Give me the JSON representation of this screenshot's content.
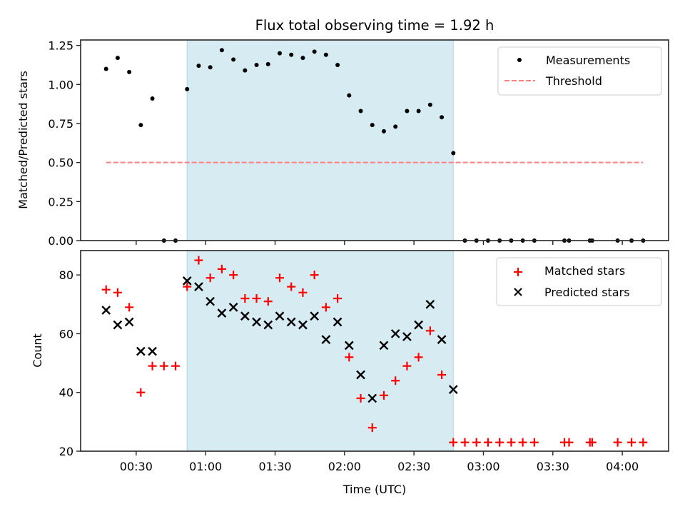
{
  "figure_title": "Flux total observing time = 1.92 h",
  "chart_data": [
    {
      "type": "scatter",
      "panel": "top",
      "title": "Flux total observing time = 1.92 h",
      "xlabel": "",
      "ylabel": "Matched/Predicted stars",
      "ylim": [
        0,
        1.285
      ],
      "xlim": [
        "00:06",
        "04:20"
      ],
      "yticks": [
        "0.00",
        "0.25",
        "0.50",
        "0.75",
        "1.00",
        "1.25"
      ],
      "ytick_values": [
        0,
        0.25,
        0.5,
        0.75,
        1.0,
        1.25
      ],
      "xticks": [
        "00:30",
        "01:00",
        "01:30",
        "02:00",
        "02:30",
        "03:00",
        "03:30",
        "04:00"
      ],
      "xtick_labels_visible": false,
      "legend": {
        "position": "top-right",
        "entries": [
          "Measurements",
          "Threshold"
        ]
      },
      "shaded_region": {
        "start": "00:52",
        "end": "02:47",
        "color": "#add8e6"
      },
      "series": [
        {
          "name": "Measurements",
          "marker": "dot",
          "color": "#000000",
          "points": [
            {
              "t": "00:17",
              "y": 1.1
            },
            {
              "t": "00:22",
              "y": 1.17
            },
            {
              "t": "00:27",
              "y": 1.08
            },
            {
              "t": "00:32",
              "y": 0.74
            },
            {
              "t": "00:37",
              "y": 0.91
            },
            {
              "t": "00:42",
              "y": 0.0
            },
            {
              "t": "00:47",
              "y": 0.0
            },
            {
              "t": "00:52",
              "y": 0.97
            },
            {
              "t": "00:57",
              "y": 1.12
            },
            {
              "t": "01:02",
              "y": 1.11
            },
            {
              "t": "01:07",
              "y": 1.22
            },
            {
              "t": "01:12",
              "y": 1.16
            },
            {
              "t": "01:17",
              "y": 1.09
            },
            {
              "t": "01:22",
              "y": 1.125
            },
            {
              "t": "01:27",
              "y": 1.13
            },
            {
              "t": "01:32",
              "y": 1.2
            },
            {
              "t": "01:37",
              "y": 1.19
            },
            {
              "t": "01:42",
              "y": 1.17
            },
            {
              "t": "01:47",
              "y": 1.21
            },
            {
              "t": "01:52",
              "y": 1.19
            },
            {
              "t": "01:57",
              "y": 1.125
            },
            {
              "t": "02:02",
              "y": 0.93
            },
            {
              "t": "02:07",
              "y": 0.83
            },
            {
              "t": "02:12",
              "y": 0.74
            },
            {
              "t": "02:17",
              "y": 0.7
            },
            {
              "t": "02:22",
              "y": 0.73
            },
            {
              "t": "02:27",
              "y": 0.83
            },
            {
              "t": "02:32",
              "y": 0.83
            },
            {
              "t": "02:37",
              "y": 0.87
            },
            {
              "t": "02:42",
              "y": 0.79
            },
            {
              "t": "02:47",
              "y": 0.56
            },
            {
              "t": "02:52",
              "y": 0.0
            },
            {
              "t": "02:57",
              "y": 0.0
            },
            {
              "t": "03:02",
              "y": 0.0
            },
            {
              "t": "03:07",
              "y": 0.0
            },
            {
              "t": "03:12",
              "y": 0.0
            },
            {
              "t": "03:17",
              "y": 0.0
            },
            {
              "t": "03:22",
              "y": 0.0
            },
            {
              "t": "03:35",
              "y": 0.0
            },
            {
              "t": "03:37",
              "y": 0.0
            },
            {
              "t": "03:46",
              "y": 0.0
            },
            {
              "t": "03:47",
              "y": 0.0
            },
            {
              "t": "03:58",
              "y": 0.0
            },
            {
              "t": "04:04",
              "y": 0.0
            },
            {
              "t": "04:09",
              "y": 0.0
            }
          ]
        },
        {
          "name": "Threshold",
          "marker": "dashed-line",
          "color": "#ff7f7f",
          "points": [
            {
              "t": "00:17",
              "y": 0.5
            },
            {
              "t": "04:09",
              "y": 0.5
            }
          ]
        }
      ]
    },
    {
      "type": "scatter",
      "panel": "bottom",
      "xlabel": "Time (UTC)",
      "ylabel": "Count",
      "ylim": [
        20,
        88.3
      ],
      "xlim": [
        "00:06",
        "04:20"
      ],
      "yticks": [
        "20",
        "40",
        "60",
        "80"
      ],
      "ytick_values": [
        20,
        40,
        60,
        80
      ],
      "xticks": [
        "00:30",
        "01:00",
        "01:30",
        "02:00",
        "02:30",
        "03:00",
        "03:30",
        "04:00"
      ],
      "legend": {
        "position": "top-right",
        "entries": [
          "Matched stars",
          "Predicted stars"
        ]
      },
      "shaded_region": {
        "start": "00:52",
        "end": "02:47",
        "color": "#add8e6"
      },
      "series": [
        {
          "name": "Matched stars",
          "marker": "plus",
          "color": "#ff0000",
          "points": [
            {
              "t": "00:17",
              "y": 75
            },
            {
              "t": "00:22",
              "y": 74
            },
            {
              "t": "00:27",
              "y": 69
            },
            {
              "t": "00:32",
              "y": 40
            },
            {
              "t": "00:37",
              "y": 49
            },
            {
              "t": "00:42",
              "y": 49
            },
            {
              "t": "00:47",
              "y": 49
            },
            {
              "t": "00:52",
              "y": 76
            },
            {
              "t": "00:57",
              "y": 85
            },
            {
              "t": "01:02",
              "y": 79
            },
            {
              "t": "01:07",
              "y": 82
            },
            {
              "t": "01:12",
              "y": 80
            },
            {
              "t": "01:17",
              "y": 72
            },
            {
              "t": "01:22",
              "y": 72
            },
            {
              "t": "01:27",
              "y": 71
            },
            {
              "t": "01:32",
              "y": 79
            },
            {
              "t": "01:37",
              "y": 76
            },
            {
              "t": "01:42",
              "y": 74
            },
            {
              "t": "01:47",
              "y": 80
            },
            {
              "t": "01:52",
              "y": 69
            },
            {
              "t": "01:57",
              "y": 72
            },
            {
              "t": "02:02",
              "y": 52
            },
            {
              "t": "02:07",
              "y": 38
            },
            {
              "t": "02:12",
              "y": 28
            },
            {
              "t": "02:17",
              "y": 39
            },
            {
              "t": "02:22",
              "y": 44
            },
            {
              "t": "02:27",
              "y": 49
            },
            {
              "t": "02:32",
              "y": 52
            },
            {
              "t": "02:37",
              "y": 61
            },
            {
              "t": "02:42",
              "y": 46
            },
            {
              "t": "02:47",
              "y": 23
            },
            {
              "t": "02:52",
              "y": 23
            },
            {
              "t": "02:57",
              "y": 23
            },
            {
              "t": "03:02",
              "y": 23
            },
            {
              "t": "03:07",
              "y": 23
            },
            {
              "t": "03:12",
              "y": 23
            },
            {
              "t": "03:17",
              "y": 23
            },
            {
              "t": "03:22",
              "y": 23
            },
            {
              "t": "03:35",
              "y": 23
            },
            {
              "t": "03:37",
              "y": 23
            },
            {
              "t": "03:46",
              "y": 23
            },
            {
              "t": "03:47",
              "y": 23
            },
            {
              "t": "03:58",
              "y": 23
            },
            {
              "t": "04:04",
              "y": 23
            },
            {
              "t": "04:09",
              "y": 23
            }
          ]
        },
        {
          "name": "Predicted stars",
          "marker": "x",
          "color": "#000000",
          "points": [
            {
              "t": "00:17",
              "y": 68
            },
            {
              "t": "00:22",
              "y": 63
            },
            {
              "t": "00:27",
              "y": 64
            },
            {
              "t": "00:32",
              "y": 54
            },
            {
              "t": "00:37",
              "y": 54
            },
            {
              "t": "00:52",
              "y": 78
            },
            {
              "t": "00:57",
              "y": 76
            },
            {
              "t": "01:02",
              "y": 71
            },
            {
              "t": "01:07",
              "y": 67
            },
            {
              "t": "01:12",
              "y": 69
            },
            {
              "t": "01:17",
              "y": 66
            },
            {
              "t": "01:22",
              "y": 64
            },
            {
              "t": "01:27",
              "y": 63
            },
            {
              "t": "01:32",
              "y": 66
            },
            {
              "t": "01:37",
              "y": 64
            },
            {
              "t": "01:42",
              "y": 63
            },
            {
              "t": "01:47",
              "y": 66
            },
            {
              "t": "01:52",
              "y": 58
            },
            {
              "t": "01:57",
              "y": 64
            },
            {
              "t": "02:02",
              "y": 56
            },
            {
              "t": "02:07",
              "y": 46
            },
            {
              "t": "02:12",
              "y": 38
            },
            {
              "t": "02:17",
              "y": 56
            },
            {
              "t": "02:22",
              "y": 60
            },
            {
              "t": "02:27",
              "y": 59
            },
            {
              "t": "02:32",
              "y": 63
            },
            {
              "t": "02:37",
              "y": 70
            },
            {
              "t": "02:42",
              "y": 58
            },
            {
              "t": "02:47",
              "y": 41
            }
          ]
        }
      ]
    }
  ]
}
